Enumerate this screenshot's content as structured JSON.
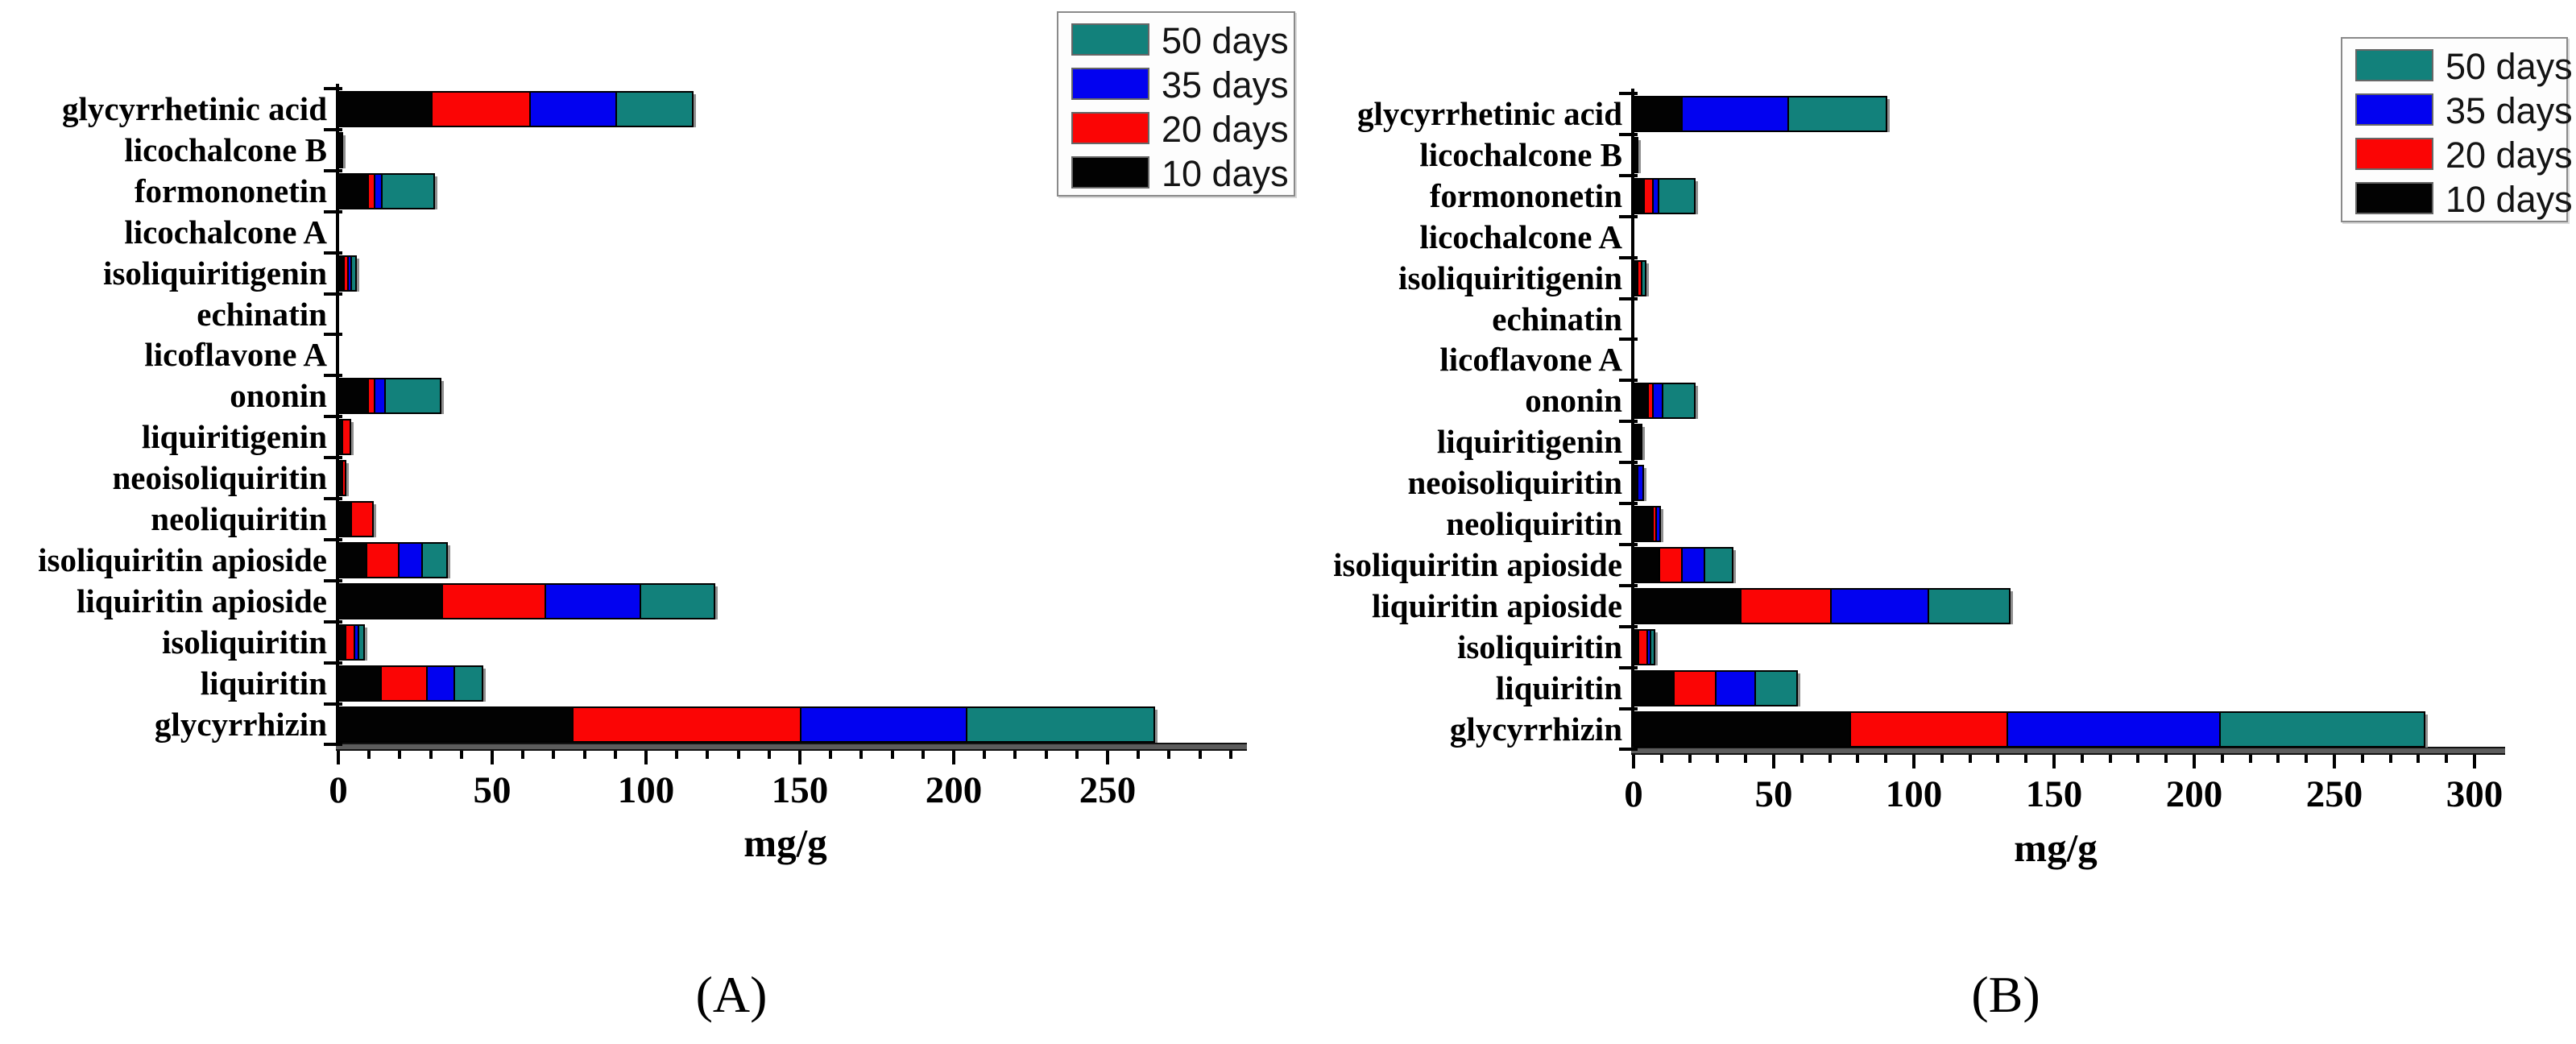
{
  "figure": {
    "caption_a": "(A)",
    "caption_b": "(B)",
    "unit_label": "mg/g",
    "colors": {
      "teal": "#12817b",
      "blue": "#0202f0",
      "red": "#fb0505",
      "black": "#020202"
    }
  },
  "chart_data": [
    {
      "id": "A",
      "type": "bar",
      "orientation": "horizontal",
      "stacked": true,
      "caption": "(A)",
      "xlabel": "mg/g",
      "ylabel": "",
      "xlim": [
        0,
        293
      ],
      "xticks_major": [
        0,
        50,
        100,
        150,
        200,
        250
      ],
      "minor_tick_step": 10,
      "grid": false,
      "legend_position": "top-right",
      "legend": [
        {
          "label": "50 days",
          "color_key": "teal"
        },
        {
          "label": "35 days",
          "color_key": "blue"
        },
        {
          "label": "20 days",
          "color_key": "red"
        },
        {
          "label": "10 days",
          "color_key": "black"
        }
      ],
      "categories": [
        "glycyrrhetinic acid",
        "licochalcone B",
        "formononetin",
        "licochalcone A",
        "isoliquiritigenin",
        "echinatin",
        "licoflavone A",
        "ononin",
        "liquiritigenin",
        "neoisoliquiritin",
        "neoliquiritin",
        "isoliquiritin apioside",
        "liquiritin apioside",
        "isoliquiritin",
        "liquiritin",
        "glycyrrhizin"
      ],
      "series": [
        {
          "name": "10 days",
          "color_key": "black",
          "values": [
            30,
            0.3,
            9.5,
            0,
            1.5,
            0,
            0,
            9.5,
            1,
            1,
            4,
            9,
            33.5,
            2,
            13.5,
            76
          ]
        },
        {
          "name": "20 days",
          "color_key": "red",
          "values": [
            32,
            0,
            2,
            0,
            1.5,
            0,
            0,
            2,
            2.5,
            1,
            7,
            10.5,
            33.5,
            3,
            15,
            74
          ]
        },
        {
          "name": "35 days",
          "color_key": "blue",
          "values": [
            28,
            0,
            2.5,
            0,
            0.5,
            0,
            0,
            3.5,
            0,
            0,
            0,
            7.5,
            31,
            1.3,
            9,
            54
          ]
        },
        {
          "name": "50 days",
          "color_key": "teal",
          "values": [
            25,
            0,
            17,
            0,
            1.5,
            0,
            0,
            18,
            0,
            0,
            0,
            8,
            24,
            1.7,
            9,
            61
          ]
        }
      ]
    },
    {
      "id": "B",
      "type": "bar",
      "orientation": "horizontal",
      "stacked": true,
      "caption": "(B)",
      "xlabel": "mg/g",
      "ylabel": "",
      "xlim": [
        0,
        308
      ],
      "xticks_major": [
        0,
        50,
        100,
        150,
        200,
        250,
        300
      ],
      "minor_tick_step": 10,
      "grid": false,
      "legend_position": "top-right",
      "legend": [
        {
          "label": "50 days",
          "color_key": "teal"
        },
        {
          "label": "35 days",
          "color_key": "blue"
        },
        {
          "label": "20 days",
          "color_key": "red"
        },
        {
          "label": "10 days",
          "color_key": "black"
        }
      ],
      "categories": [
        "glycyrrhetinic acid",
        "licochalcone B",
        "formononetin",
        "licochalcone A",
        "isoliquiritigenin",
        "echinatin",
        "licoflavone A",
        "ononin",
        "liquiritigenin",
        "neoisoliquiritin",
        "neoliquiritin",
        "isoliquiritin apioside",
        "liquiritin apioside",
        "isoliquiritin",
        "liquiritin",
        "glycyrrhizin"
      ],
      "series": [
        {
          "name": "10 days",
          "color_key": "black",
          "values": [
            17,
            0.3,
            3.5,
            0,
            1.2,
            0,
            0,
            5,
            2.5,
            1,
            6.5,
            9,
            38,
            1.5,
            14,
            77
          ]
        },
        {
          "name": "20 days",
          "color_key": "red",
          "values": [
            0,
            0,
            3,
            0,
            1.3,
            0,
            0,
            1.5,
            0,
            0,
            1,
            8,
            32,
            3,
            15,
            56
          ]
        },
        {
          "name": "35 days",
          "color_key": "blue",
          "values": [
            38,
            0,
            2,
            0,
            0,
            0,
            0,
            3.5,
            0,
            2,
            1.5,
            8,
            35,
            1,
            14,
            76
          ]
        },
        {
          "name": "50 days",
          "color_key": "teal",
          "values": [
            35,
            0,
            13,
            0,
            1.5,
            0,
            0,
            11.5,
            0,
            0,
            0,
            10,
            29,
            1.5,
            15,
            73
          ]
        }
      ]
    }
  ]
}
